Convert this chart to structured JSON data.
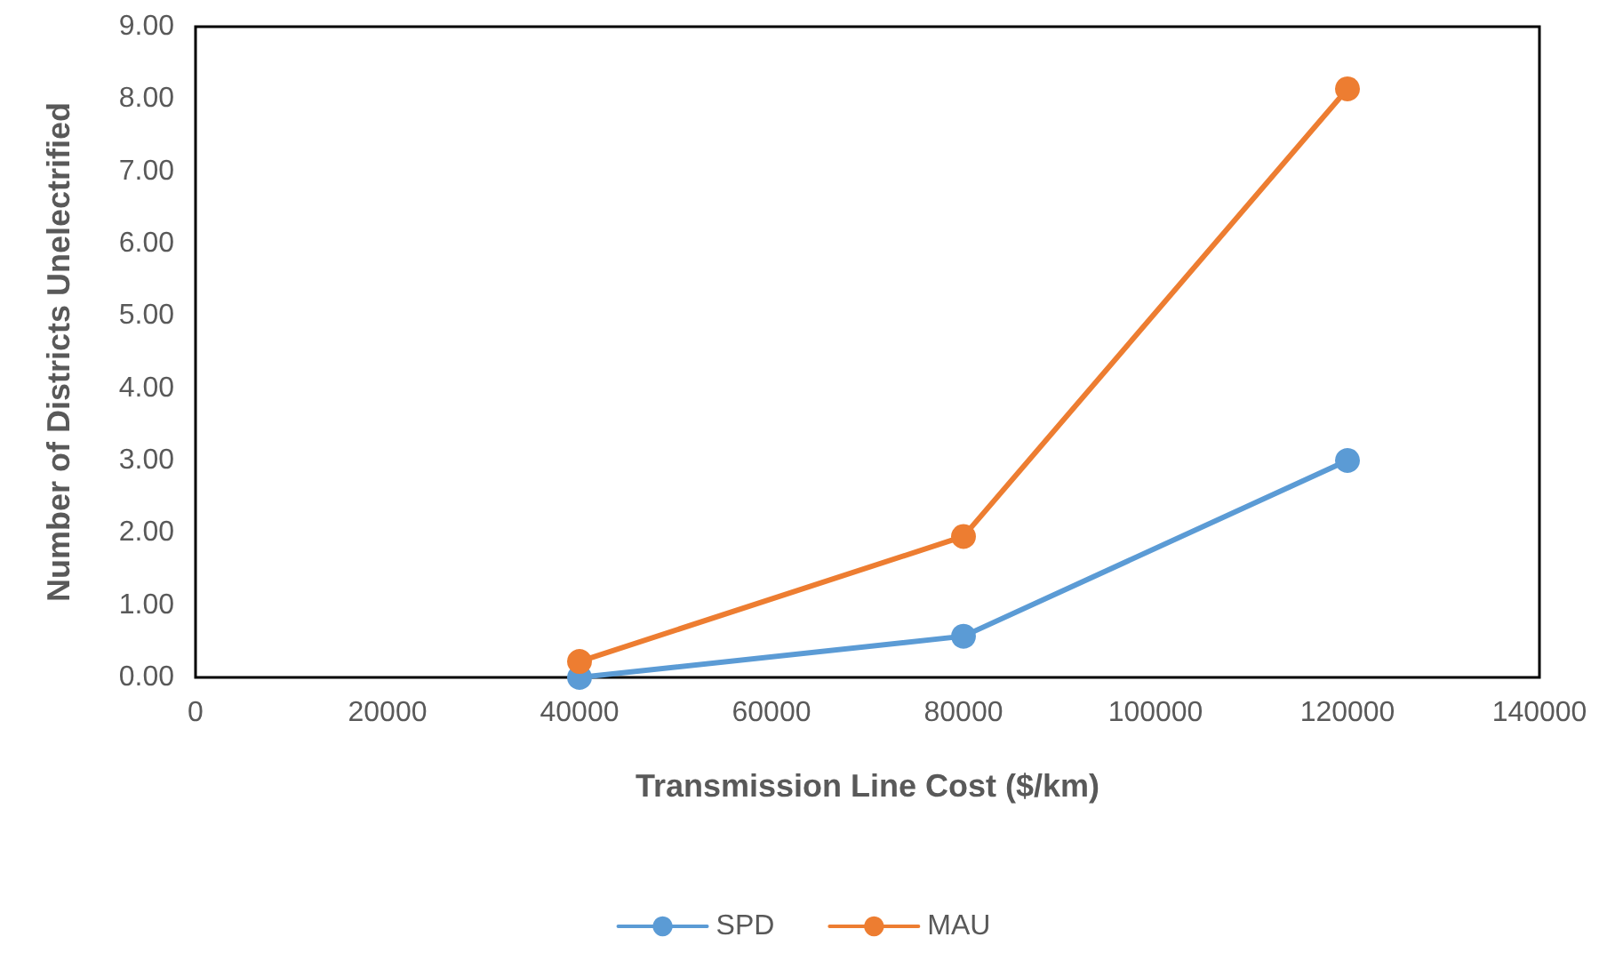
{
  "chart_data": {
    "type": "line",
    "xlabel": "Transmission Line Cost ($/km)",
    "ylabel": "Number of Districts Unelectrified",
    "x": [
      40000,
      80000,
      120000
    ],
    "series": [
      {
        "name": "SPD",
        "color": "#5b9bd5",
        "values": [
          0,
          0.57,
          3.0
        ]
      },
      {
        "name": "MAU",
        "color": "#ed7d31",
        "values": [
          0.22,
          1.95,
          8.14
        ]
      }
    ],
    "xlim": [
      0,
      140000
    ],
    "xticks": [
      0,
      20000,
      40000,
      60000,
      80000,
      100000,
      120000,
      140000
    ],
    "ylim": [
      0,
      9
    ],
    "yticks": [
      {
        "value": 0,
        "label": "0.00"
      },
      {
        "value": 1,
        "label": "1.00"
      },
      {
        "value": 2,
        "label": "2.00"
      },
      {
        "value": 3,
        "label": "3.00"
      },
      {
        "value": 4,
        "label": "4.00"
      },
      {
        "value": 5,
        "label": "5.00"
      },
      {
        "value": 6,
        "label": "6.00"
      },
      {
        "value": 7,
        "label": "7.00"
      },
      {
        "value": 8,
        "label": "8.00"
      },
      {
        "value": 9,
        "label": "9.00"
      }
    ],
    "grid": false,
    "legend": "bottom",
    "marker": "circle",
    "line_style": "solid"
  }
}
